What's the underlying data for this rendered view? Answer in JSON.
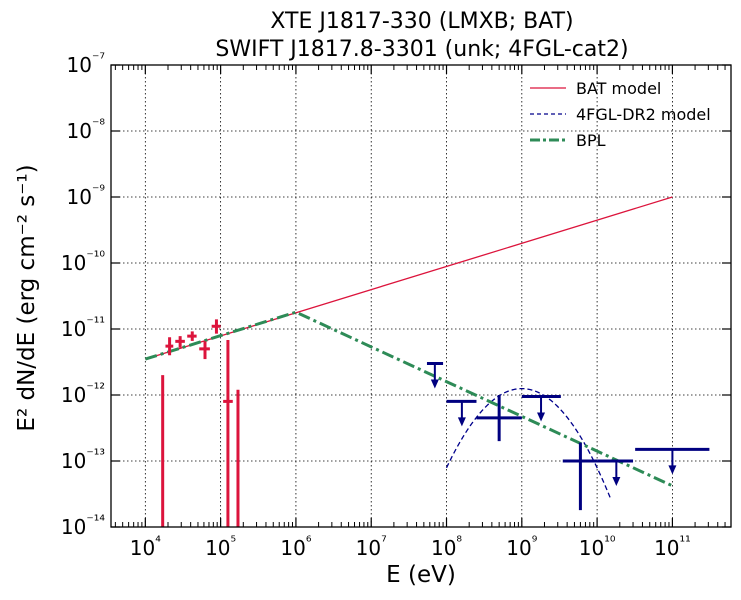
{
  "chart_data": {
    "type": "scatter",
    "title": [
      "XTE J1817-330 (LMXB; BAT)",
      "SWIFT J1817.8-3301 (unk; 4FGL-cat2)"
    ],
    "xlabel": "E (eV)",
    "ylabel": "E² dN/dE (erg cm⁻² s⁻¹)",
    "xscale": "log",
    "yscale": "log",
    "xlim": [
      3500,
      600000000000
    ],
    "ylim": [
      1e-14,
      1e-07
    ],
    "grid": "dotted",
    "legend_position": "top-right",
    "x_ticks": [
      {
        "value": 10000,
        "label": "10⁴"
      },
      {
        "value": 100000,
        "label": "10⁵"
      },
      {
        "value": 1000000,
        "label": "10⁶"
      },
      {
        "value": 10000000,
        "label": "10⁷"
      },
      {
        "value": 100000000,
        "label": "10⁸"
      },
      {
        "value": 1000000000,
        "label": "10⁹"
      },
      {
        "value": 10000000000,
        "label": "10¹⁰"
      },
      {
        "value": 100000000000,
        "label": "10¹¹"
      }
    ],
    "y_ticks": [
      {
        "value": 1e-14,
        "label": "10⁻¹⁴"
      },
      {
        "value": 1e-13,
        "label": "10⁻¹³"
      },
      {
        "value": 1e-12,
        "label": "10⁻¹²"
      },
      {
        "value": 1e-11,
        "label": "10⁻¹¹"
      },
      {
        "value": 1e-10,
        "label": "10⁻¹⁰"
      },
      {
        "value": 1e-09,
        "label": "10⁻⁹"
      },
      {
        "value": 1e-08,
        "label": "10⁻⁸"
      },
      {
        "value": 1e-07,
        "label": "10⁻⁷"
      }
    ],
    "series": [
      {
        "name": "BAT model",
        "kind": "line",
        "color": "#dc143c",
        "dash": "solid",
        "x": [
          10000,
          100000000000
        ],
        "y": [
          3.5e-12,
          1e-09
        ]
      },
      {
        "name": "4FGL-DR2 model",
        "kind": "line",
        "color": "#00008b",
        "dash": "dashed",
        "shape": "log-parabola",
        "peak_x": 1000000000,
        "peak_y": 1.25e-12,
        "x_range": [
          100000000,
          15000000000
        ]
      },
      {
        "name": "BPL",
        "kind": "line",
        "color": "#2e8b57",
        "dash": "dashdot",
        "x": [
          10000,
          1000000,
          100000000000
        ],
        "y": [
          3.5e-12,
          1.8e-11,
          4.2e-14
        ]
      },
      {
        "kind": "errorbar",
        "color": "#dc143c",
        "points": [
          {
            "x": 21000,
            "y": 5.5e-12,
            "xerr": [
              18500,
              23500
            ],
            "yerr": [
              4e-12,
              7.5e-12
            ]
          },
          {
            "x": 29000,
            "y": 6.5e-12,
            "xerr": [
              25000,
              33500
            ],
            "yerr": [
              5.2e-12,
              7.8e-12
            ]
          },
          {
            "x": 42000,
            "y": 7.8e-12,
            "xerr": [
              36000,
              48000
            ],
            "yerr": [
              6.6e-12,
              9.2e-12
            ]
          },
          {
            "x": 62000,
            "y": 5e-12,
            "xerr": [
              52000,
              72000
            ],
            "yerr": [
              3.5e-12,
              6.5e-12
            ]
          },
          {
            "x": 88000,
            "y": 1.1e-11,
            "xerr": [
              76000,
              100000
            ],
            "yerr": [
              8.5e-12,
              1.4e-11
            ]
          },
          {
            "x": 125000,
            "y": 8e-13,
            "xerr": [
              108000,
              145000
            ],
            "yerr": [
              1e-14,
              6.8e-12
            ]
          }
        ],
        "bars_below_axis": [
          {
            "x": 17000,
            "yerr": [
              1e-14,
              2e-12
            ]
          },
          {
            "x": 170000,
            "yerr": [
              1e-14,
              1.2e-12
            ]
          }
        ]
      },
      {
        "kind": "errorbar",
        "color": "#000080",
        "points": [
          {
            "x": 500000000,
            "y": 4.5e-13,
            "xerr": [
              250000000,
              1000000000
            ],
            "yerr": [
              2e-13,
              1e-12
            ]
          },
          {
            "x": 6000000000,
            "y": 1e-13,
            "xerr": [
              3500000000,
              10000000000
            ],
            "yerr": [
              1.8e-14,
              1.9e-13
            ]
          }
        ]
      },
      {
        "kind": "upper-limit",
        "color": "#000080",
        "points": [
          {
            "x": 70000000,
            "y": 3e-12,
            "xerr": [
              55000000,
              90000000
            ]
          },
          {
            "x": 160000000,
            "y": 8e-13,
            "xerr": [
              100000000,
              250000000
            ]
          },
          {
            "x": 1800000000,
            "y": 9.5e-13,
            "xerr": [
              1000000000,
              3300000000
            ]
          },
          {
            "x": 18000000000,
            "y": 1e-13,
            "xerr": [
              10000000000,
              30000000000
            ]
          },
          {
            "x": 100000000000,
            "y": 1.5e-13,
            "xerr": [
              32000000000,
              310000000000
            ]
          }
        ]
      }
    ]
  }
}
